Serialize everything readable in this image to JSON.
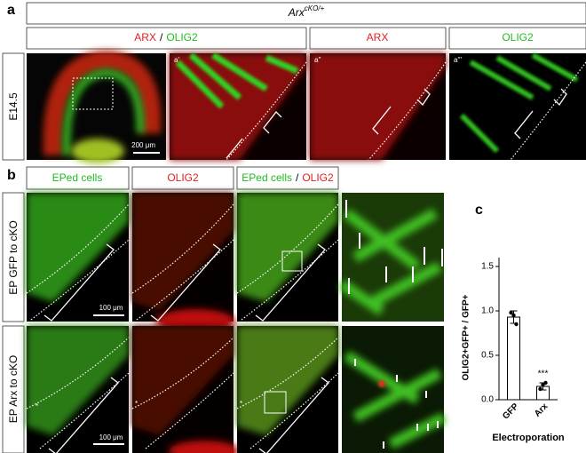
{
  "figure": {
    "panel_a": {
      "label": "a",
      "genotype": {
        "gene": "Arx",
        "superscript": "cKO/+"
      },
      "headers": {
        "arx_1": "ARX",
        "separator_1": "/",
        "olig2_1": "OLIG2",
        "arx_2": "ARX",
        "olig2_2": "OLIG2"
      },
      "stage": "E14.5",
      "insets": [
        "a'",
        "a''",
        "a'''"
      ],
      "scale_bar": "200 μm"
    },
    "panel_b": {
      "label": "b",
      "headers": {
        "eped_1": "EPed cells",
        "olig2_1": "OLIG2",
        "eped_2": "EPed cells",
        "separator": "/",
        "olig2_2": "OLIG2"
      },
      "rows": [
        "EP GFP to cKO",
        "EP Arx to cKO"
      ],
      "scale_bar": "100 μm",
      "asterisk": "*"
    },
    "panel_c": {
      "label": "c"
    }
  },
  "chart_data": {
    "type": "bar",
    "ylabel": "OLIG2+GFP+ / GFP+",
    "xlabel": "Electroporation",
    "categories": [
      "GFP",
      "Arx"
    ],
    "values": [
      0.93,
      0.15
    ],
    "errors": [
      0.07,
      0.04
    ],
    "points": [
      [
        0.98,
        0.95,
        0.85
      ],
      [
        0.12,
        0.17,
        0.19
      ]
    ],
    "annotation": "***",
    "color": "#ffffff",
    "ylim": [
      0,
      1.6
    ],
    "yticks": [
      {
        "value": 0,
        "label": "0.0"
      },
      0.5,
      {
        "value": 1,
        "label": "1.0"
      },
      1.5
    ]
  }
}
